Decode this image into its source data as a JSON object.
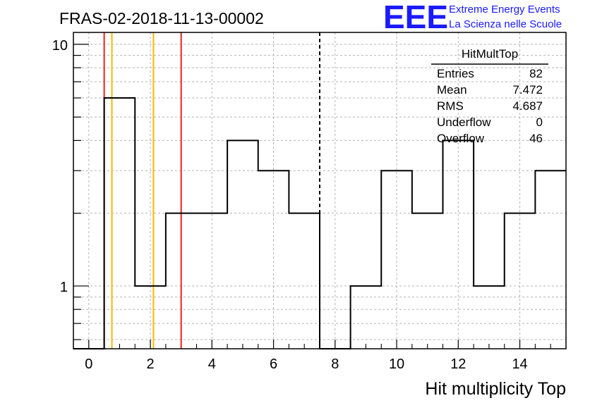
{
  "header": {
    "run_title": "FRAS-02-2018-11-13-00002",
    "logo": {
      "letters": "EEE",
      "line1": "Extreme Energy Events",
      "line2": "La Scienza nelle Scuole",
      "color": "#1a1aff"
    }
  },
  "chart_data": {
    "type": "histogram-step",
    "title": "FRAS-02-2018-11-13-00002",
    "xlabel": "Hit multiplicity Top",
    "ylabel": "",
    "x_scale": "linear",
    "y_scale": "log",
    "xlim": [
      -0.5,
      15.5
    ],
    "ylim": [
      0.55,
      11.2
    ],
    "grid": true,
    "x_major_ticks": [
      0,
      2,
      4,
      6,
      8,
      10,
      12,
      14
    ],
    "x_tick_labels": [
      "0",
      "2",
      "4",
      "6",
      "8",
      "10",
      "12",
      "14"
    ],
    "y_major_ticks": [
      1,
      10
    ],
    "y_tick_labels": [
      "1",
      "10"
    ],
    "bins": [
      {
        "low": -0.5,
        "high": 0.5,
        "count": 0
      },
      {
        "low": 0.5,
        "high": 1.5,
        "count": 6
      },
      {
        "low": 1.5,
        "high": 2.5,
        "count": 1
      },
      {
        "low": 2.5,
        "high": 3.5,
        "count": 2
      },
      {
        "low": 3.5,
        "high": 4.5,
        "count": 2
      },
      {
        "low": 4.5,
        "high": 5.5,
        "count": 4
      },
      {
        "low": 5.5,
        "high": 6.5,
        "count": 3
      },
      {
        "low": 6.5,
        "high": 7.5,
        "count": 2
      },
      {
        "low": 7.5,
        "high": 8.5,
        "count": 0
      },
      {
        "low": 8.5,
        "high": 9.5,
        "count": 1
      },
      {
        "low": 9.5,
        "high": 10.5,
        "count": 3
      },
      {
        "low": 10.5,
        "high": 11.5,
        "count": 2
      },
      {
        "low": 11.5,
        "high": 12.5,
        "count": 4
      },
      {
        "low": 12.5,
        "high": 13.5,
        "count": 1
      },
      {
        "low": 13.5,
        "high": 14.5,
        "count": 2
      },
      {
        "low": 14.5,
        "high": 15.5,
        "count": 3
      }
    ],
    "vertical_lines": [
      {
        "x": 0.5,
        "color": "#e8231c",
        "style": "solid"
      },
      {
        "x": 3.0,
        "color": "#e8231c",
        "style": "solid"
      },
      {
        "x": 0.75,
        "color": "#f5b800",
        "style": "solid"
      },
      {
        "x": 2.1,
        "color": "#f5b800",
        "style": "solid"
      },
      {
        "x": 7.5,
        "color": "#000000",
        "style": "dashed"
      }
    ],
    "stats_box": {
      "name": "HitMultTop",
      "rows": [
        {
          "label": "Entries",
          "value": "82"
        },
        {
          "label": "Mean",
          "value": "7.472"
        },
        {
          "label": "RMS",
          "value": "4.687"
        },
        {
          "label": "Underflow",
          "value": "0"
        },
        {
          "label": "Overflow",
          "value": "46"
        }
      ]
    }
  }
}
